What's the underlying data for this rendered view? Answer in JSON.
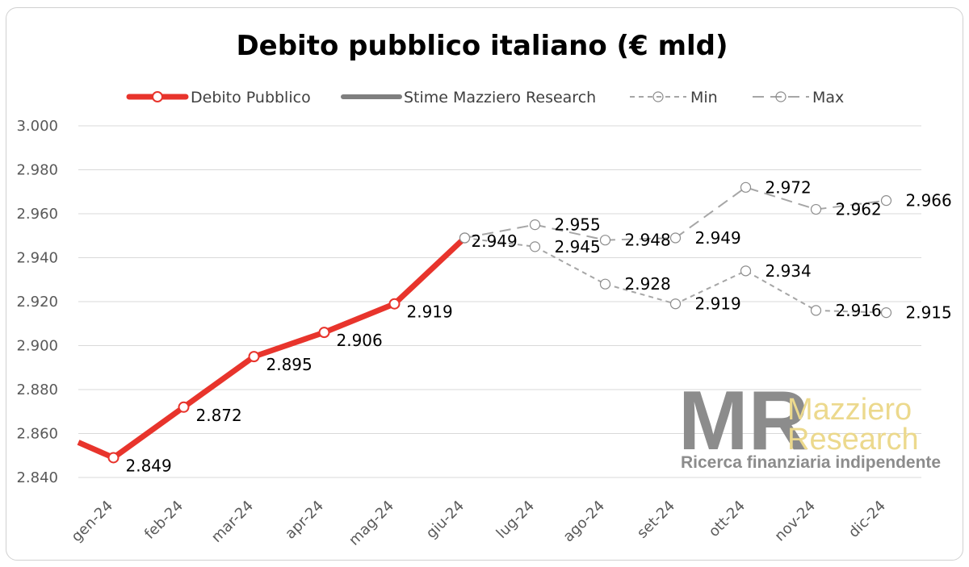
{
  "chart_data": {
    "type": "line",
    "title": "Debito pubblico italiano (€ mld)",
    "categories": [
      "gen-24",
      "feb-24",
      "mar-24",
      "apr-24",
      "mag-24",
      "giu-24",
      "lug-24",
      "ago-24",
      "set-24",
      "ott-24",
      "nov-24",
      "dic-24"
    ],
    "ylim": [
      2840,
      3000
    ],
    "yticks": [
      2840,
      2860,
      2880,
      2900,
      2920,
      2940,
      2960,
      2980,
      3000
    ],
    "ytick_labels": [
      "2.840",
      "2.860",
      "2.880",
      "2.900",
      "2.920",
      "2.940",
      "2.960",
      "2.980",
      "3.000"
    ],
    "grid": true,
    "legend_position": "top",
    "prior_value": 2856,
    "series": [
      {
        "name": "Debito Pubblico",
        "color": "#e8342c",
        "style": "solid-thick",
        "x": [
          "gen-24",
          "feb-24",
          "mar-24",
          "apr-24",
          "mag-24",
          "giu-24"
        ],
        "values": [
          2849,
          2872,
          2895,
          2906,
          2919,
          2949
        ],
        "labels": [
          "2.849",
          "2.872",
          "2.895",
          "2.906",
          "2.919",
          ""
        ]
      },
      {
        "name": "Stime Mazziero Research",
        "color": "#7f7f7f",
        "style": "solid",
        "x": [],
        "values": [],
        "labels": []
      },
      {
        "name": "Min",
        "color": "#a6a6a6",
        "style": "dashed-short",
        "x": [
          "giu-24",
          "lug-24",
          "ago-24",
          "set-24",
          "ott-24",
          "nov-24",
          "dic-24"
        ],
        "values": [
          2949,
          2945,
          2928,
          2919,
          2934,
          2916,
          2915
        ],
        "labels": [
          "2.949",
          "2.945",
          "2.928",
          "2.919",
          "2.934",
          "2.916",
          "2.915"
        ]
      },
      {
        "name": "Max",
        "color": "#a6a6a6",
        "style": "dashed-long",
        "x": [
          "giu-24",
          "lug-24",
          "ago-24",
          "set-24",
          "ott-24",
          "nov-24",
          "dic-24"
        ],
        "values": [
          2949,
          2955,
          2948,
          2949,
          2972,
          2962,
          2966
        ],
        "labels": [
          "2.949",
          "2.955",
          "2.948",
          "2.949",
          "2.972",
          "2.962",
          "2.966"
        ]
      }
    ]
  },
  "logo": {
    "mark": "MR",
    "name_line1": "Mazziero",
    "name_line2": "Research",
    "tagline": "Ricerca finanziaria indipendente",
    "mark_color": "#8c8c8c",
    "name_color": "#ecd98d"
  }
}
